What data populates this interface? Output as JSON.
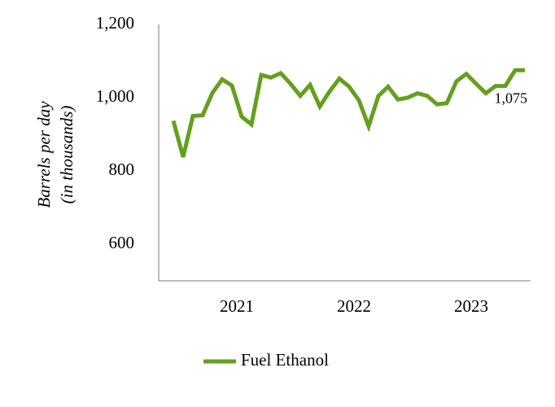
{
  "chart_data": {
    "type": "line",
    "y_label": [
      "Barrels per day",
      "(in thousands)"
    ],
    "categories": [
      null,
      null,
      null,
      null,
      null,
      null,
      "2021",
      null,
      null,
      null,
      null,
      null,
      null,
      null,
      null,
      null,
      null,
      null,
      "2022",
      null,
      null,
      null,
      null,
      null,
      null,
      null,
      null,
      null,
      null,
      null,
      "2023",
      null,
      null,
      null,
      null,
      null,
      null
    ],
    "series": [
      {
        "name": "Fuel Ethanol",
        "color": "#64a01e",
        "values": [
          937,
          838,
          950,
          952,
          1013,
          1050,
          1033,
          948,
          927,
          1062,
          1055,
          1067,
          1038,
          1005,
          1035,
          976,
          1017,
          1052,
          1030,
          993,
          922,
          1005,
          1030,
          995,
          1000,
          1012,
          1005,
          982,
          985,
          1045,
          1065,
          1038,
          1012,
          1032,
          1032,
          1075,
          1075
        ],
        "value_labels": [
          null,
          null,
          null,
          null,
          null,
          null,
          null,
          null,
          null,
          null,
          null,
          null,
          null,
          null,
          null,
          null,
          null,
          null,
          null,
          null,
          null,
          null,
          null,
          null,
          null,
          null,
          null,
          null,
          null,
          null,
          null,
          null,
          null,
          null,
          null,
          null,
          "1,075"
        ]
      }
    ],
    "ylim": [
      500,
      1200
    ],
    "yticks": [
      600,
      800,
      {
        "value": 1000,
        "label": "1,000"
      },
      {
        "value": 1200,
        "label": "1,200"
      }
    ],
    "grid": false,
    "legend": "bottom"
  }
}
